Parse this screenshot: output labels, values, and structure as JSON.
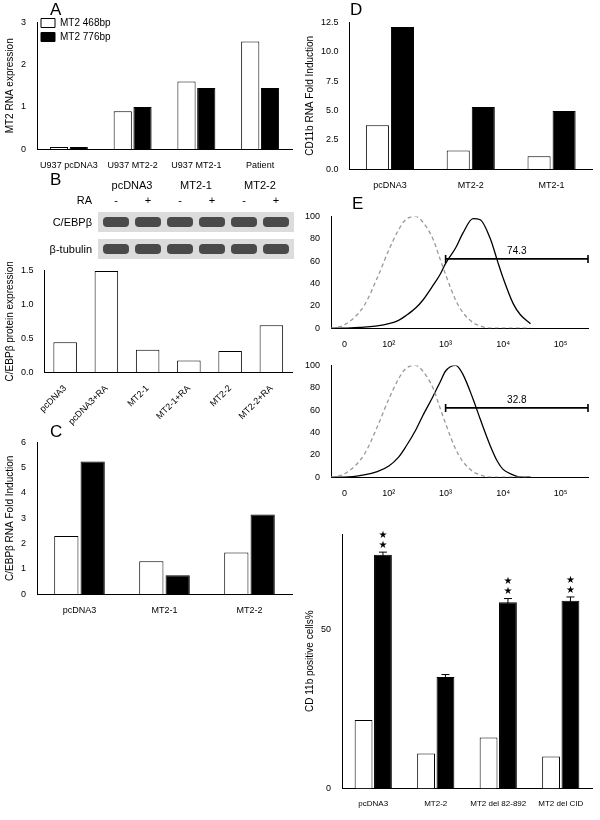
{
  "chart_data": [
    {
      "title": "A",
      "type": "bar",
      "categories": [
        "U937 pcDNA3",
        "U937 MT2-2",
        "U937 MT2-1",
        "Patient"
      ],
      "series": [
        {
          "name": "MT2 468bp",
          "color": "#ffffff",
          "values": [
            0.05,
            0.9,
            1.6,
            2.55
          ]
        },
        {
          "name": "MT2 776bp",
          "color": "#000000",
          "values": [
            0.05,
            1.0,
            1.45,
            1.45
          ]
        }
      ],
      "y_label": "MT2 RNA expression",
      "ylim": [
        0,
        3
      ],
      "yticks": [
        0,
        1,
        2,
        3
      ],
      "grid": false,
      "legend": "upper left"
    },
    {
      "type": "bar",
      "categories": [
        "pcDNA3",
        "pcDNA3+RA",
        "MT2-1",
        "MT2-1+RA",
        "MT2-2",
        "MT2-2+RA"
      ],
      "values": [
        0.44,
        1.49,
        0.33,
        0.17,
        0.31,
        0.69
      ],
      "color": "#ffffff",
      "y_label": "C/EBPβ protein expression",
      "ylim": [
        0,
        1.5
      ],
      "yticks": [
        {
          "value": 0,
          "label": "0.0"
        },
        0.5,
        {
          "value": 1,
          "label": "1.0"
        },
        1.5
      ],
      "grid": false
    },
    {
      "title": "C",
      "type": "bar",
      "categories": [
        "pcDNA3",
        "MT2-1",
        "MT2-2"
      ],
      "series": [
        {
          "color": "#ffffff",
          "values": [
            2.3,
            1.3,
            1.65
          ]
        },
        {
          "color": "#000000",
          "values": [
            5.25,
            0.75,
            3.15
          ]
        }
      ],
      "y_label": "C/EBPβ RNA Fold Induction",
      "ylim": [
        0,
        6
      ],
      "yticks": [
        0,
        1,
        2,
        3,
        4,
        5,
        6
      ],
      "grid": false
    },
    {
      "title": "D",
      "type": "bar",
      "categories": [
        "pcDNA3",
        "MT2-2",
        "MT2-1"
      ],
      "series": [
        {
          "color": "#ffffff",
          "values": [
            3.75,
            1.6,
            1.1
          ]
        },
        {
          "color": "#000000",
          "values": [
            12.1,
            5.3,
            4.95
          ]
        }
      ],
      "y_label": "CD11b RNA Fold Induction",
      "ylim": [
        0,
        12.5
      ],
      "yticks": [
        {
          "value": 0,
          "label": "0.0"
        },
        {
          "value": 2.5,
          "label": "2.5"
        },
        {
          "value": 5,
          "label": "5.0"
        },
        {
          "value": 7.5,
          "label": "7.5"
        },
        {
          "value": 10,
          "label": "10.0"
        },
        {
          "value": 12.5,
          "label": "12.5"
        }
      ],
      "grid": false
    },
    {
      "title": "E",
      "type": "line",
      "x": [
        -20,
        0,
        30,
        60,
        100,
        150,
        200,
        300,
        400,
        600,
        800,
        1000,
        1500,
        2000,
        3000,
        4000,
        6000,
        8000,
        10000,
        15000,
        20000,
        30000
      ],
      "series": [
        {
          "color": "#999999",
          "line_style": "dashed",
          "values": [
            0,
            3,
            20,
            45,
            70,
            88,
            97,
            100,
            95,
            80,
            62,
            48,
            25,
            14,
            5,
            2,
            0,
            0,
            0,
            0,
            0,
            0
          ]
        },
        {
          "color": "#000000",
          "line_style": "solid",
          "values": [
            0,
            0,
            1,
            2,
            4,
            7,
            11,
            18,
            25,
            38,
            48,
            58,
            72,
            85,
            98,
            97,
            80,
            60,
            45,
            22,
            12,
            4
          ]
        }
      ],
      "xlim": [
        -20,
        300000
      ],
      "xticks": [
        0,
        {
          "value": 100,
          "label": "10²"
        },
        {
          "value": 1000,
          "label": "10³"
        },
        {
          "value": 10000,
          "label": "10⁴"
        },
        {
          "value": 100000,
          "label": "10⁵"
        }
      ],
      "ylim": [
        0,
        100
      ],
      "yticks": [
        0,
        20,
        40,
        60,
        80,
        100
      ],
      "annotations": [
        {
          "text": "74.3",
          "x": [
            1000,
            300000
          ],
          "y": 62
        }
      ],
      "grid": false
    },
    {
      "type": "line",
      "x": [
        -20,
        0,
        30,
        60,
        100,
        150,
        200,
        300,
        400,
        600,
        800,
        1000,
        1500,
        2000,
        3000,
        4000,
        6000,
        8000,
        10000,
        15000,
        20000,
        30000
      ],
      "series": [
        {
          "color": "#999999",
          "line_style": "dashed",
          "values": [
            0,
            3,
            20,
            45,
            70,
            88,
            97,
            100,
            95,
            80,
            62,
            48,
            25,
            14,
            5,
            2,
            0,
            0,
            0,
            0,
            0,
            0
          ]
        },
        {
          "color": "#000000",
          "line_style": "solid",
          "values": [
            0,
            0,
            2,
            5,
            10,
            18,
            27,
            42,
            55,
            72,
            85,
            95,
            100,
            92,
            70,
            52,
            28,
            14,
            7,
            2,
            0,
            0
          ]
        }
      ],
      "xlim": [
        -20,
        300000
      ],
      "xticks": [
        0,
        {
          "value": 100,
          "label": "10²"
        },
        {
          "value": 1000,
          "label": "10³"
        },
        {
          "value": 10000,
          "label": "10⁴"
        },
        {
          "value": 100000,
          "label": "10⁵"
        }
      ],
      "ylim": [
        0,
        100
      ],
      "yticks": [
        0,
        20,
        40,
        60,
        80,
        100
      ],
      "annotations": [
        {
          "text": "32.8",
          "x": [
            1000,
            300000
          ],
          "y": 62
        }
      ],
      "grid": false
    },
    {
      "type": "bar",
      "categories": [
        "pcDNA3",
        "MT2-2",
        "MT2 del 82-892",
        "MT2 del CID"
      ],
      "series": [
        {
          "color": "#ffffff",
          "values": [
            21.5,
            11,
            16,
            10
          ]
        },
        {
          "color": "#000000",
          "values": [
            73.5,
            35,
            58.5,
            59
          ],
          "errors": [
            0.8,
            0.8,
            1.2,
            1.2
          ],
          "annotations": [
            "★★",
            null,
            "★★",
            "★★"
          ]
        }
      ],
      "y_label": "CD 11b positive cells%",
      "ylim": [
        0,
        80
      ],
      "yticks": [
        0,
        50
      ],
      "grid": false
    }
  ],
  "blot": {
    "title": "B",
    "groups": [
      "pcDNA3",
      "MT2-1",
      "MT2-2"
    ],
    "treatment": "RA",
    "lanes": [
      "-",
      "+",
      "-",
      "+",
      "-",
      "+"
    ],
    "rows": [
      "C/EBPβ",
      "β-tubulin"
    ]
  }
}
